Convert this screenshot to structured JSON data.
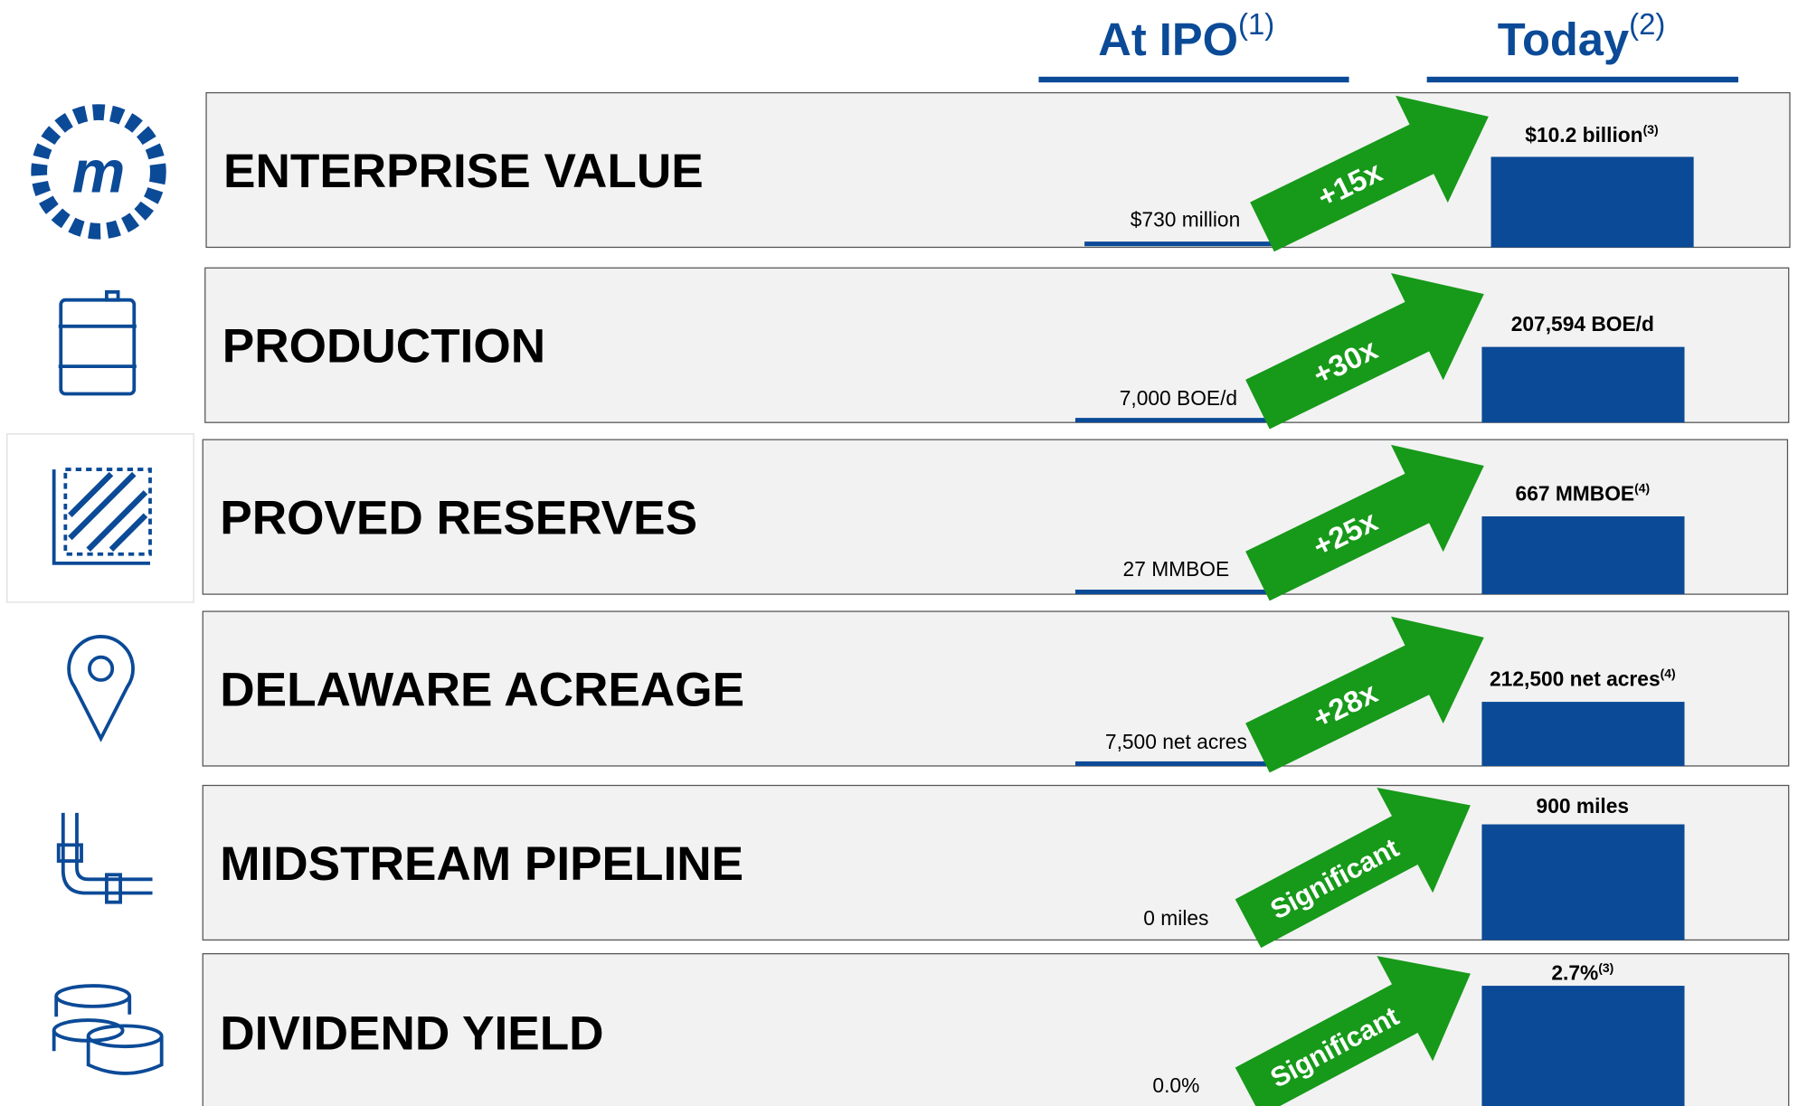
{
  "header": {
    "ipo": "At IPO",
    "ipo_note": "(1)",
    "today": "Today",
    "today_note": "(2)"
  },
  "rows": [
    {
      "label": "ENTERPRISE VALUE",
      "ipo": "$730 million",
      "multiple": "+15x",
      "today": "$10.2 billion",
      "today_note": "(3)"
    },
    {
      "label": "PRODUCTION",
      "ipo": "7,000 BOE/d",
      "multiple": "+30x",
      "today": "207,594 BOE/d"
    },
    {
      "label": "PROVED RESERVES",
      "ipo": "27 MMBOE",
      "multiple": "+25x",
      "today": "667 MMBOE",
      "today_note": "(4)"
    },
    {
      "label": "DELAWARE ACREAGE",
      "ipo": "7,500 net acres",
      "multiple": "+28x",
      "today": "212,500 net acres",
      "today_note": "(4)"
    },
    {
      "label": "MIDSTREAM PIPELINE",
      "ipo": "0 miles",
      "multiple": "Significant",
      "today": "900 miles"
    },
    {
      "label": "DIVIDEND YIELD",
      "ipo": "0.0%",
      "multiple": "Significant",
      "today": "2.7%",
      "today_note": "(3)"
    }
  ]
}
